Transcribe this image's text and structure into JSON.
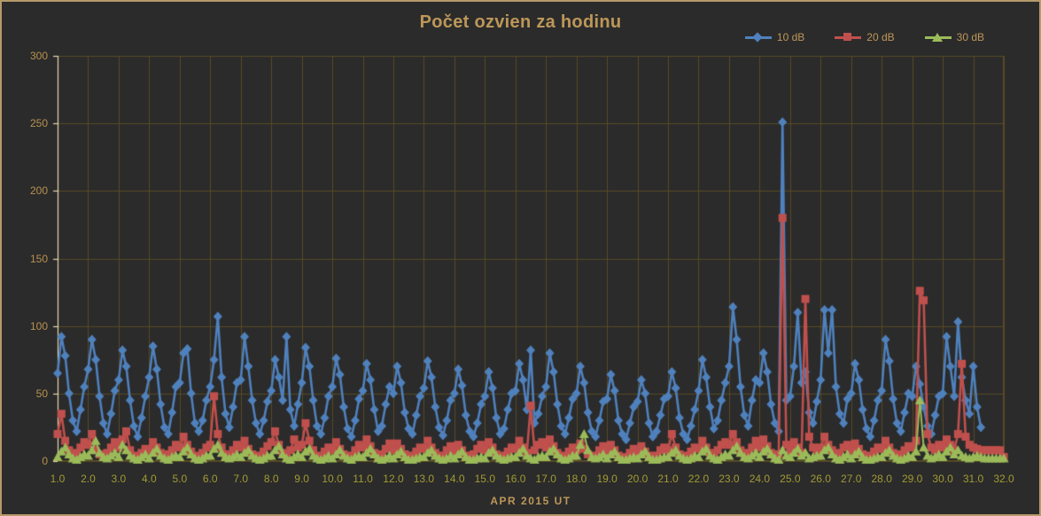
{
  "window": {
    "background": "#2b2b2b",
    "border_color": "#b59a6a"
  },
  "header": {
    "title": "Počet ozvien za hodinu",
    "title_color": "#bd9758"
  },
  "legend": {
    "position": "top-right",
    "text_color": "#bd9758",
    "items": [
      {
        "label": "10 dB",
        "color": "#4f81bd",
        "marker": "diamond"
      },
      {
        "label": "20 dB",
        "color": "#c0504d",
        "marker": "square"
      },
      {
        "label": "30 dB",
        "color": "#9bbb59",
        "marker": "triangle"
      }
    ]
  },
  "chart_data": {
    "type": "line",
    "title": "Počet ozvien za hodinu",
    "xlabel": "APR 2015 UT",
    "ylabel": "",
    "xlim": [
      1.0,
      32.0
    ],
    "ylim": [
      0,
      300
    ],
    "grid": true,
    "grid_color": "#584b25",
    "axis_line_color": "#e8d6b3",
    "y_tick_color": "#b8914f",
    "x_tick_color": "#a19b33",
    "x_tick_labels": [
      "1.0",
      "2.0",
      "3.0",
      "4.0",
      "5.0",
      "6.0",
      "7.0",
      "8.0",
      "9.0",
      "10.0",
      "11.0",
      "12.0",
      "13.0",
      "14.0",
      "15.0",
      "16.0",
      "17.0",
      "18.0",
      "19.0",
      "20.0",
      "21.0",
      "22.0",
      "23.0",
      "24.0",
      "25.0",
      "26.0",
      "27.0",
      "28.0",
      "29.0",
      "30.0",
      "31.0",
      "32.0"
    ],
    "y_tick_labels": [
      "0",
      "50",
      "100",
      "150",
      "200",
      "250",
      "300"
    ],
    "y_tick_values": [
      0,
      50,
      100,
      150,
      200,
      250,
      300
    ],
    "x_start": 1.0,
    "x_step": 0.125,
    "sampling_note": "hourly echo counts, April 2015, ~3-hour resolution estimate read from plot",
    "series": [
      {
        "name": "10 dB",
        "color": "#4f81bd",
        "marker": "diamond",
        "values": [
          65,
          92,
          78,
          50,
          30,
          22,
          38,
          55,
          68,
          90,
          75,
          48,
          28,
          20,
          35,
          52,
          60,
          82,
          70,
          45,
          26,
          18,
          32,
          48,
          62,
          85,
          68,
          42,
          25,
          20,
          36,
          55,
          58,
          80,
          83,
          50,
          28,
          22,
          30,
          45,
          55,
          75,
          107,
          62,
          35,
          25,
          40,
          58,
          60,
          92,
          70,
          45,
          28,
          20,
          30,
          44,
          52,
          75,
          62,
          45,
          92,
          38,
          26,
          42,
          58,
          84,
          70,
          45,
          26,
          20,
          32,
          48,
          55,
          76,
          64,
          40,
          24,
          18,
          30,
          46,
          52,
          72,
          60,
          38,
          22,
          26,
          42,
          55,
          50,
          70,
          58,
          36,
          24,
          20,
          34,
          48,
          54,
          74,
          62,
          40,
          25,
          19,
          30,
          45,
          50,
          68,
          56,
          34,
          22,
          18,
          28,
          42,
          48,
          66,
          54,
          32,
          20,
          24,
          38,
          50,
          52,
          72,
          60,
          38,
          82,
          28,
          35,
          48,
          55,
          80,
          66,
          42,
          26,
          20,
          32,
          46,
          50,
          70,
          58,
          36,
          22,
          18,
          30,
          44,
          46,
          64,
          52,
          30,
          20,
          16,
          28,
          40,
          44,
          60,
          50,
          28,
          18,
          22,
          34,
          46,
          48,
          66,
          54,
          32,
          20,
          16,
          26,
          38,
          52,
          75,
          62,
          40,
          24,
          30,
          45,
          58,
          70,
          114,
          90,
          55,
          34,
          26,
          45,
          60,
          58,
          80,
          66,
          42,
          28,
          22,
          251,
          45,
          48,
          70,
          110,
          58,
          66,
          36,
          28,
          44,
          60,
          112,
          80,
          112,
          55,
          35,
          28,
          46,
          50,
          72,
          60,
          38,
          24,
          18,
          30,
          45,
          52,
          90,
          74,
          46,
          28,
          22,
          36,
          50,
          48,
          70,
          57,
          40,
          26,
          20,
          34,
          48,
          50,
          92,
          70,
          48,
          103,
          62,
          45,
          35,
          70,
          40,
          25,
          null,
          null,
          null,
          null,
          null,
          null
        ]
      },
      {
        "name": "20 dB",
        "color": "#c0504d",
        "marker": "square",
        "values": [
          20,
          35,
          15,
          8,
          4,
          6,
          10,
          14,
          12,
          20,
          8,
          5,
          3,
          6,
          10,
          14,
          10,
          16,
          22,
          8,
          4,
          3,
          6,
          9,
          8,
          14,
          10,
          6,
          3,
          5,
          8,
          12,
          10,
          18,
          12,
          7,
          4,
          3,
          6,
          10,
          12,
          48,
          20,
          10,
          5,
          4,
          8,
          12,
          10,
          15,
          9,
          5,
          3,
          4,
          7,
          11,
          14,
          22,
          12,
          6,
          4,
          8,
          16,
          10,
          12,
          28,
          15,
          8,
          4,
          3,
          7,
          10,
          8,
          14,
          9,
          5,
          3,
          4,
          8,
          12,
          10,
          16,
          11,
          6,
          3,
          5,
          9,
          13,
          8,
          13,
          9,
          5,
          3,
          4,
          7,
          10,
          9,
          15,
          10,
          6,
          3,
          4,
          8,
          11,
          7,
          12,
          8,
          4,
          3,
          5,
          9,
          12,
          8,
          14,
          10,
          5,
          3,
          4,
          7,
          10,
          9,
          15,
          10,
          6,
          41,
          8,
          12,
          14,
          10,
          16,
          11,
          6,
          4,
          3,
          7,
          10,
          8,
          13,
          9,
          5,
          3,
          4,
          8,
          11,
          7,
          12,
          8,
          4,
          2,
          3,
          6,
          9,
          6,
          11,
          7,
          4,
          2,
          4,
          8,
          10,
          8,
          20,
          10,
          5,
          3,
          4,
          7,
          10,
          9,
          15,
          10,
          6,
          4,
          8,
          12,
          14,
          12,
          20,
          14,
          8,
          5,
          6,
          10,
          15,
          10,
          16,
          11,
          6,
          4,
          5,
          180,
          12,
          8,
          14,
          10,
          6,
          120,
          18,
          10,
          8,
          10,
          18,
          12,
          8,
          5,
          6,
          10,
          12,
          8,
          13,
          9,
          5,
          3,
          4,
          7,
          10,
          9,
          15,
          10,
          6,
          4,
          5,
          8,
          11,
          10,
          15,
          126,
          119,
          20,
          10,
          8,
          12,
          10,
          16,
          12,
          8,
          20,
          72,
          18,
          12,
          10,
          9,
          8,
          8,
          8,
          8,
          8,
          8,
          3
        ]
      },
      {
        "name": "30 dB",
        "color": "#9bbb59",
        "marker": "triangle",
        "values": [
          3,
          7,
          10,
          5,
          2,
          1,
          3,
          5,
          4,
          8,
          15,
          6,
          3,
          2,
          4,
          6,
          3,
          12,
          8,
          4,
          2,
          1,
          3,
          5,
          2,
          6,
          9,
          4,
          2,
          1,
          3,
          4,
          3,
          7,
          10,
          5,
          2,
          1,
          2,
          4,
          4,
          9,
          12,
          6,
          3,
          2,
          3,
          5,
          3,
          6,
          8,
          4,
          2,
          1,
          2,
          4,
          4,
          8,
          11,
          5,
          2,
          1,
          3,
          5,
          3,
          7,
          9,
          4,
          2,
          1,
          2,
          4,
          2,
          5,
          8,
          4,
          2,
          1,
          3,
          4,
          3,
          6,
          9,
          5,
          2,
          1,
          2,
          4,
          2,
          5,
          7,
          3,
          1,
          1,
          2,
          3,
          3,
          6,
          8,
          4,
          2,
          1,
          2,
          4,
          2,
          5,
          7,
          3,
          1,
          1,
          2,
          3,
          2,
          6,
          8,
          4,
          2,
          1,
          2,
          3,
          3,
          6,
          9,
          4,
          2,
          1,
          3,
          4,
          3,
          7,
          9,
          5,
          2,
          1,
          2,
          4,
          4,
          12,
          20,
          8,
          3,
          2,
          3,
          5,
          2,
          5,
          7,
          3,
          1,
          1,
          2,
          3,
          2,
          5,
          7,
          3,
          1,
          1,
          2,
          3,
          3,
          6,
          8,
          4,
          2,
          1,
          2,
          4,
          3,
          7,
          9,
          4,
          2,
          1,
          3,
          5,
          4,
          8,
          11,
          6,
          3,
          2,
          4,
          6,
          3,
          7,
          9,
          5,
          2,
          1,
          8,
          4,
          3,
          6,
          9,
          4,
          6,
          2,
          3,
          4,
          4,
          8,
          10,
          5,
          2,
          1,
          3,
          5,
          2,
          5,
          7,
          3,
          1,
          1,
          2,
          3,
          3,
          6,
          8,
          4,
          2,
          1,
          2,
          4,
          3,
          7,
          45,
          10,
          4,
          2,
          3,
          5,
          3,
          7,
          10,
          5,
          8,
          4,
          3,
          2,
          3,
          4,
          3,
          2,
          2,
          2,
          2,
          2,
          2
        ]
      }
    ]
  }
}
